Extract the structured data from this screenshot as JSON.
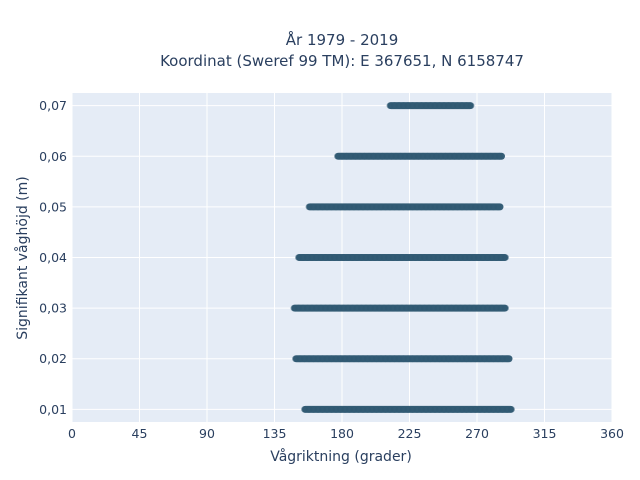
{
  "chart_data": {
    "type": "scatter",
    "title_line1": "År 1979 - 2019",
    "title_line2": "Koordinat (Sweref 99 TM): E 367651, N 6158747",
    "xlabel": "Vågriktning (grader)",
    "ylabel": "Signifikant våghöjd (m)",
    "xlim": [
      0,
      360
    ],
    "ylim": [
      0.0075,
      0.0725
    ],
    "x_ticks": [
      0,
      45,
      90,
      135,
      180,
      225,
      270,
      315,
      360
    ],
    "x_tick_labels": [
      "0",
      "45",
      "90",
      "135",
      "180",
      "225",
      "270",
      "315",
      "360"
    ],
    "y_ticks": [
      0.01,
      0.02,
      0.03,
      0.04,
      0.05,
      0.06,
      0.07
    ],
    "y_tick_labels": [
      "0,01",
      "0,02",
      "0,03",
      "0,04",
      "0,05",
      "0,06",
      "0,07"
    ],
    "grid": true,
    "background_color": "#e5ecf6",
    "marker_color": "#2e5872",
    "bands": [
      {
        "y": 0.07,
        "x_min": 212,
        "x_max": 266
      },
      {
        "y": 0.06,
        "x_min": 177,
        "x_max": 287
      },
      {
        "y": 0.05,
        "x_min": 158,
        "x_max": 286
      },
      {
        "y": 0.04,
        "x_min": 151,
        "x_max": 289
      },
      {
        "y": 0.03,
        "x_min": 148,
        "x_max": 289
      },
      {
        "y": 0.02,
        "x_min": 149,
        "x_max": 292
      },
      {
        "y": 0.01,
        "x_min": 155,
        "x_max": 293
      }
    ]
  }
}
